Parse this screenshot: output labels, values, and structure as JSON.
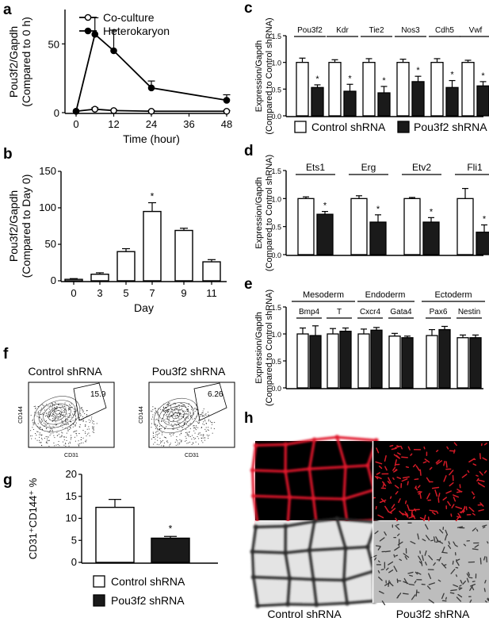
{
  "panel_labels": {
    "a": "a",
    "b": "b",
    "c": "c",
    "d": "d",
    "e": "e",
    "f": "f",
    "g": "g",
    "h": "h"
  },
  "chart_data": [
    {
      "panel": "a",
      "type": "line",
      "ylabel": [
        "Pou3f2/Gapdh",
        "(Compared to 0 h)"
      ],
      "xlabel": "Time (hour)",
      "xlim": [
        0,
        48
      ],
      "xticks": [
        0,
        12,
        24,
        36,
        48
      ],
      "ylim": [
        0,
        75
      ],
      "yticks": [
        0,
        50
      ],
      "legend_position": "top-left",
      "series": [
        {
          "name": "Co-culture",
          "marker": "open-circle",
          "x": [
            0,
            6,
            12,
            24,
            48
          ],
          "values": [
            1,
            2.5,
            1.5,
            1,
            1
          ],
          "err": [
            0,
            1,
            0.5,
            0.5,
            0.5
          ]
        },
        {
          "name": "Heterokaryon",
          "marker": "filled-circle",
          "x": [
            0,
            6,
            12,
            24,
            48
          ],
          "values": [
            1,
            57,
            45,
            18,
            9
          ],
          "err": [
            0,
            12,
            15,
            5,
            4
          ]
        }
      ]
    },
    {
      "panel": "b",
      "type": "bar",
      "ylabel": [
        "Pou3f2/Gapdh",
        "(Compared to Day 0)"
      ],
      "xlabel": "Day",
      "categories": [
        "0",
        "3",
        "5",
        "7",
        "9",
        "11"
      ],
      "values": [
        2,
        9,
        40,
        95,
        69,
        26
      ],
      "err": [
        1,
        2,
        4,
        12,
        3,
        3
      ],
      "sig": [
        false,
        false,
        false,
        true,
        false,
        false
      ],
      "ylim": [
        0,
        150
      ],
      "yticks": [
        0,
        50,
        100,
        150
      ],
      "sig_mark": "*"
    },
    {
      "panel": "c",
      "type": "bar",
      "ylabel": [
        "Expression/Gapdh",
        "(Compared to Control shRNA)"
      ],
      "ylim": [
        0,
        1.5
      ],
      "yticks": [
        "0.0",
        "0.5",
        "1.0",
        "1.5"
      ],
      "groups": [
        "Pou3f2",
        "Kdr",
        "Tie2",
        "Nos3",
        "Cdh5",
        "Vwf"
      ],
      "series": [
        {
          "name": "Control shRNA",
          "fill": "#ffffff",
          "values": [
            1,
            1,
            1,
            1,
            1,
            1
          ],
          "err": [
            0.08,
            0.05,
            0.07,
            0.06,
            0.07,
            0.04
          ]
        },
        {
          "name": "Pou3f2 shRNA",
          "fill": "#1a1a1a",
          "values": [
            0.53,
            0.46,
            0.43,
            0.64,
            0.53,
            0.56
          ],
          "err": [
            0.05,
            0.13,
            0.12,
            0.1,
            0.13,
            0.08
          ]
        }
      ],
      "sig_mark": "*",
      "legend": [
        "Control shRNA",
        "Pou3f2 shRNA"
      ]
    },
    {
      "panel": "d",
      "type": "bar",
      "ylabel": [
        "Expression/Gapdh",
        "(Compared to Control shRNA)"
      ],
      "ylim": [
        0,
        1.5
      ],
      "yticks": [
        "0.0",
        "0.5",
        "1.0",
        "1.5"
      ],
      "groups": [
        "Ets1",
        "Erg",
        "Etv2",
        "Fli1"
      ],
      "series": [
        {
          "name": "Control shRNA",
          "fill": "#ffffff",
          "values": [
            1,
            1,
            1,
            1
          ],
          "err": [
            0.03,
            0.05,
            0.02,
            0.18
          ]
        },
        {
          "name": "Pou3f2 shRNA",
          "fill": "#1a1a1a",
          "values": [
            0.72,
            0.58,
            0.58,
            0.4
          ],
          "err": [
            0.05,
            0.13,
            0.08,
            0.13
          ]
        }
      ],
      "sig_mark": "*"
    },
    {
      "panel": "e",
      "type": "bar",
      "ylabel": [
        "Expression/Gapdh",
        "(Compared to Control shRNA)"
      ],
      "ylim": [
        0,
        1.5
      ],
      "yticks": [
        "0.0",
        "0.5",
        "1.0",
        "1.5"
      ],
      "supergroups": [
        "Mesoderm",
        "Endoderm",
        "Ectoderm"
      ],
      "groups": [
        "Bmp4",
        "T",
        "Cxcr4",
        "Gata4",
        "Pax6",
        "Nestin"
      ],
      "series": [
        {
          "name": "Control shRNA",
          "fill": "#ffffff",
          "values": [
            1,
            1,
            1,
            0.96,
            0.97,
            0.93
          ],
          "err": [
            0.11,
            0.1,
            0.09,
            0.05,
            0.11,
            0.05
          ]
        },
        {
          "name": "Pou3f2 shRNA",
          "fill": "#1a1a1a",
          "values": [
            0.97,
            1.05,
            1.07,
            0.93,
            1.08,
            0.93
          ],
          "err": [
            0.18,
            0.06,
            0.05,
            0.03,
            0.06,
            0.05
          ]
        }
      ]
    },
    {
      "panel": "g",
      "type": "bar",
      "ylabel": "CD31⁺CD144⁺ %",
      "categories": [
        "Control shRNA",
        "Pou3f2 shRNA"
      ],
      "values": [
        12.5,
        5.5
      ],
      "err": [
        1.8,
        0.4
      ],
      "ylim": [
        0,
        20
      ],
      "yticks": [
        0,
        5,
        10,
        15,
        20
      ],
      "fills": [
        "#ffffff",
        "#1a1a1a"
      ],
      "sig": [
        false,
        true
      ],
      "sig_mark": "*",
      "legend": [
        "Control shRNA",
        "Pou3f2 shRNA"
      ]
    }
  ],
  "panel_f": {
    "plots": [
      {
        "title": "Control shRNA",
        "gate_value": "15.9",
        "xlabel": "CD31",
        "ylabel": "CD144"
      },
      {
        "title": "Pou3f2 shRNA",
        "gate_value": "6.26",
        "xlabel": "CD31",
        "ylabel": "CD144"
      }
    ]
  },
  "panel_h": {
    "captions": [
      "Control shRNA",
      "Pou3f2 shRNA"
    ]
  }
}
